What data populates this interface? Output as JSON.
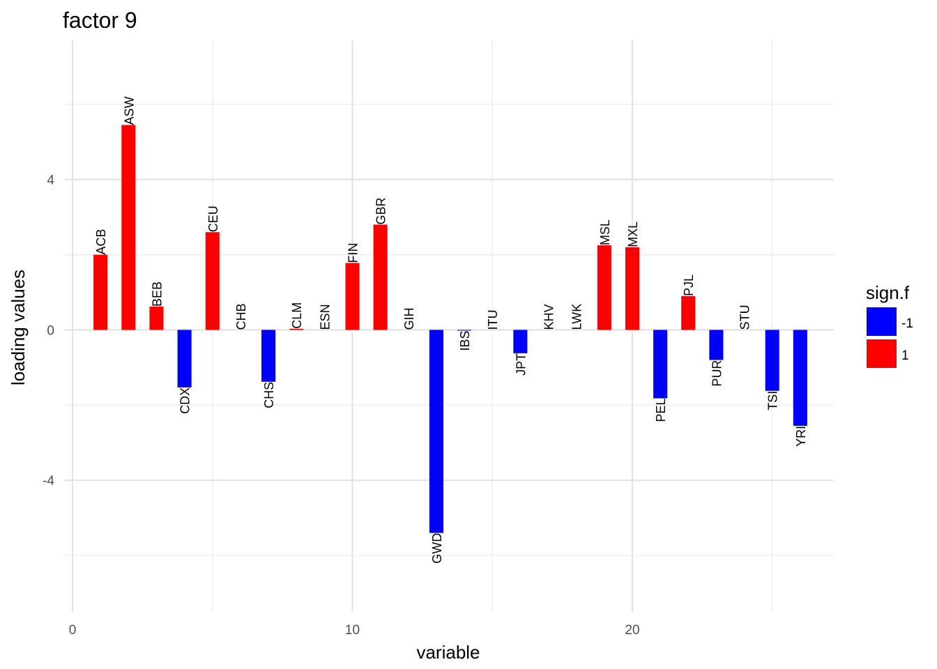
{
  "chart_data": {
    "type": "bar",
    "title": "factor 9",
    "xlabel": "variable",
    "ylabel": "loading values",
    "xlim": [
      -0.3,
      27.2
    ],
    "ylim": [
      -7.5,
      7.7
    ],
    "x_major_ticks": [
      0,
      10,
      20
    ],
    "x_minor_ticks": [
      5,
      15,
      25
    ],
    "y_major_ticks": [
      -4,
      0,
      4
    ],
    "y_minor_ticks": [
      -6,
      -2,
      2,
      6
    ],
    "grid": true,
    "legend": {
      "title": "sign.f",
      "placement": "right",
      "entries": [
        {
          "label": "-1",
          "color": "#0000ff"
        },
        {
          "label": "1",
          "color": "#ff0000"
        }
      ]
    },
    "colors": {
      "negative": "#0000ff",
      "positive": "#ff0000"
    },
    "bars": [
      {
        "x": 1,
        "label": "ACB",
        "value": 2.0,
        "sign": 1
      },
      {
        "x": 2,
        "label": "ASW",
        "value": 5.45,
        "sign": 1
      },
      {
        "x": 3,
        "label": "BEB",
        "value": 0.62,
        "sign": 1
      },
      {
        "x": 4,
        "label": "CDX",
        "value": -1.53,
        "sign": -1
      },
      {
        "x": 5,
        "label": "CEU",
        "value": 2.6,
        "sign": 1
      },
      {
        "x": 6,
        "label": "CHB",
        "value": 0.0,
        "sign": 1
      },
      {
        "x": 7,
        "label": "CHS",
        "value": -1.38,
        "sign": -1
      },
      {
        "x": 8,
        "label": "CLM",
        "value": 0.03,
        "sign": 1
      },
      {
        "x": 9,
        "label": "ESN",
        "value": 0.0,
        "sign": 1
      },
      {
        "x": 10,
        "label": "FIN",
        "value": 1.78,
        "sign": 1
      },
      {
        "x": 11,
        "label": "GBR",
        "value": 2.8,
        "sign": 1
      },
      {
        "x": 12,
        "label": "GIH",
        "value": 0.0,
        "sign": -1
      },
      {
        "x": 13,
        "label": "GWD",
        "value": -5.4,
        "sign": -1
      },
      {
        "x": 14,
        "label": "IBS",
        "value": -0.02,
        "sign": -1
      },
      {
        "x": 15,
        "label": "ITU",
        "value": 0.0,
        "sign": 1
      },
      {
        "x": 16,
        "label": "JPT",
        "value": -0.62,
        "sign": -1
      },
      {
        "x": 17,
        "label": "KHV",
        "value": 0.0,
        "sign": 1
      },
      {
        "x": 18,
        "label": "LWK",
        "value": 0.0,
        "sign": 1
      },
      {
        "x": 19,
        "label": "MSL",
        "value": 2.25,
        "sign": 1
      },
      {
        "x": 20,
        "label": "MXL",
        "value": 2.2,
        "sign": 1
      },
      {
        "x": 21,
        "label": "PEL",
        "value": -1.82,
        "sign": -1
      },
      {
        "x": 22,
        "label": "PJL",
        "value": 0.9,
        "sign": 1
      },
      {
        "x": 23,
        "label": "PUR",
        "value": -0.8,
        "sign": -1
      },
      {
        "x": 24,
        "label": "STU",
        "value": 0.0,
        "sign": 1
      },
      {
        "x": 25,
        "label": "TSI",
        "value": -1.62,
        "sign": -1
      },
      {
        "x": 26,
        "label": "YRI",
        "value": -2.55,
        "sign": -1
      }
    ]
  }
}
